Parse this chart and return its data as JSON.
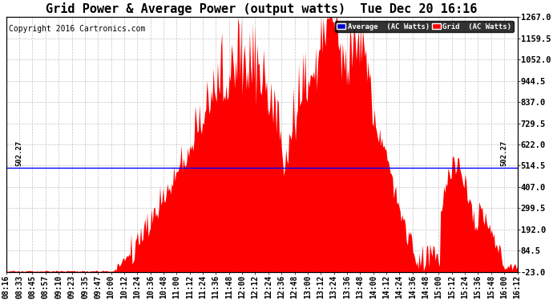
{
  "title": "Grid Power & Average Power (output watts)  Tue Dec 20 16:16",
  "copyright": "Copyright 2016 Cartronics.com",
  "ylabel_right_ticks": [
    1267.0,
    1159.5,
    1052.0,
    944.5,
    837.0,
    729.5,
    622.0,
    514.5,
    407.0,
    299.5,
    192.0,
    84.5,
    -23.0
  ],
  "average_line_y": 502.27,
  "average_label": "502.27",
  "bg_color": "#ffffff",
  "fill_color": "#ff0000",
  "line_color": "#0000ff",
  "grid_color": "#aaaaaa",
  "xtick_labels": [
    "08:16",
    "08:33",
    "08:45",
    "08:57",
    "09:10",
    "09:23",
    "09:35",
    "09:47",
    "10:00",
    "10:12",
    "10:24",
    "10:36",
    "10:48",
    "11:00",
    "11:12",
    "11:24",
    "11:36",
    "11:48",
    "12:00",
    "12:12",
    "12:24",
    "12:36",
    "12:48",
    "13:00",
    "13:12",
    "13:24",
    "13:36",
    "13:48",
    "14:00",
    "14:12",
    "14:24",
    "14:36",
    "14:48",
    "15:00",
    "15:12",
    "15:24",
    "15:36",
    "15:48",
    "16:00",
    "16:12"
  ],
  "ylim": [
    -23.0,
    1267.0
  ],
  "title_fontsize": 11,
  "tick_fontsize": 7,
  "copyright_fontsize": 7
}
